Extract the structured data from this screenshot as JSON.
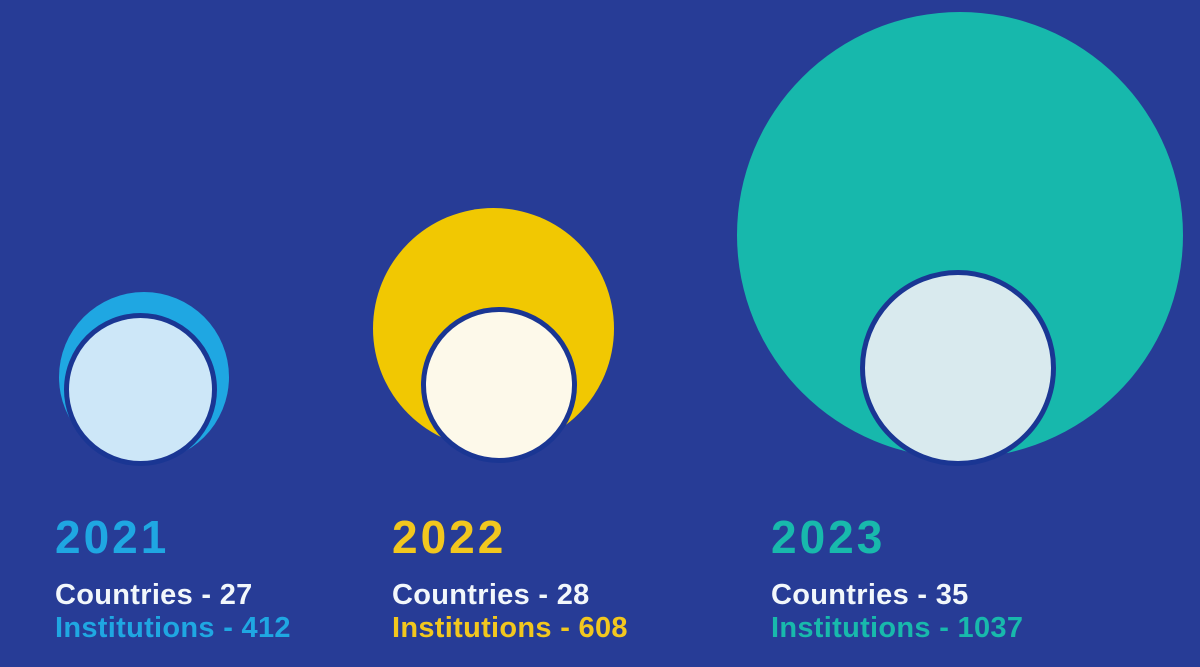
{
  "colors": {
    "background": "#273c96",
    "circle_stroke": "#1a3693",
    "countries_text": "#f2f7fb"
  },
  "groups": [
    {
      "year": "2021",
      "countries": 27,
      "institutions": 412,
      "countries_label": "Countries - 27",
      "institutions_label": "Institutions - 412",
      "accent_color": "#1fa7e2",
      "outer_color": "#1fa7e2",
      "inner_fill": "#cde7f8"
    },
    {
      "year": "2022",
      "countries": 28,
      "institutions": 608,
      "countries_label": "Countries - 28",
      "institutions_label": "Institutions - 608",
      "accent_color": "#f2c71e",
      "outer_color": "#f1c802",
      "inner_fill": "#fdf9ea"
    },
    {
      "year": "2023",
      "countries": 35,
      "institutions": 1037,
      "countries_label": "Countries - 35",
      "institutions_label": "Institutions - 1037",
      "accent_color": "#18b9ac",
      "outer_color": "#17b8ac",
      "inner_fill": "#d9eaee"
    }
  ],
  "chart_data": {
    "type": "bubble",
    "categories": [
      "2021",
      "2022",
      "2023"
    ],
    "series": [
      {
        "name": "Countries",
        "values": [
          27,
          28,
          35
        ]
      },
      {
        "name": "Institutions",
        "values": [
          412,
          608,
          1037
        ]
      }
    ],
    "title": "",
    "xlabel": "",
    "ylabel": "",
    "legend_position": "none",
    "layout_hint": "Three year groups left-to-right; outer colored bubble area scales with Institutions, inner light navy-stroked bubble with Countries; year and stats text below each group"
  }
}
